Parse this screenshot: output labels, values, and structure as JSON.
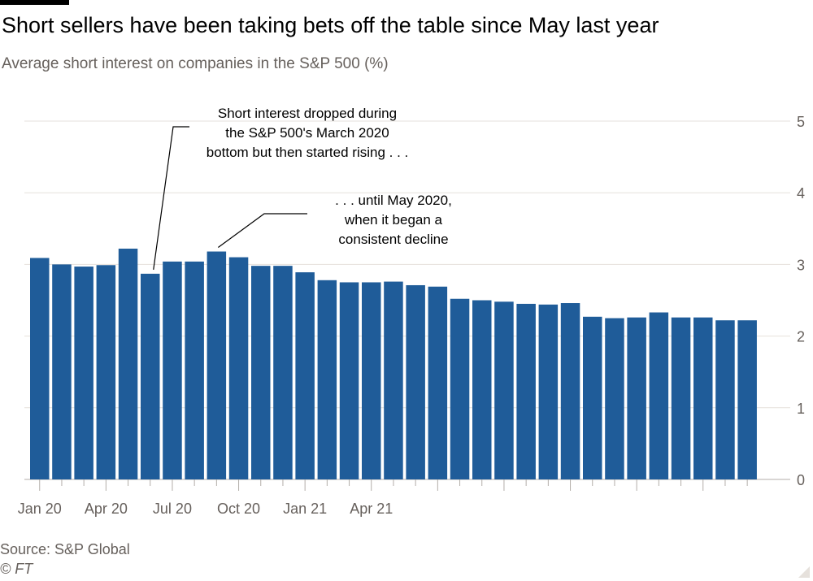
{
  "header": {
    "title": "Short sellers have been taking bets off the table since May last year",
    "subtitle": "Average short interest on companies in the S&P 500 (%)"
  },
  "footer": {
    "source": "Source: S&P Global",
    "credit": "© FT"
  },
  "chart_data": {
    "type": "bar",
    "values": [
      3.09,
      3.0,
      2.97,
      2.99,
      3.22,
      2.87,
      3.04,
      3.04,
      3.18,
      3.1,
      2.98,
      2.98,
      2.89,
      2.78,
      2.75,
      2.75,
      2.76,
      2.71,
      2.69,
      2.52,
      2.5,
      2.48,
      2.45,
      2.44,
      2.46,
      2.27,
      2.25,
      2.26,
      2.33,
      2.26,
      2.26,
      2.22,
      2.22
    ],
    "x_tick_labels": [
      "Jan 20",
      "Apr 20",
      "Jul 20",
      "Oct 20",
      "Jan 21",
      "Apr 21"
    ],
    "y_ticks": [
      0,
      1,
      2,
      3,
      4,
      5
    ],
    "ylim": [
      0,
      5
    ],
    "bar_color": "#1f5c99",
    "grid": true,
    "y_axis_position": "right",
    "annotations": [
      {
        "lines": [
          "Short interest dropped during",
          "the S&P 500's March 2020",
          "bottom but then started rising . . ."
        ],
        "bar_index": 5
      },
      {
        "lines": [
          ". . . until May 2020,",
          "when it began a",
          "consistent decline"
        ],
        "bar_index": 8
      }
    ]
  }
}
